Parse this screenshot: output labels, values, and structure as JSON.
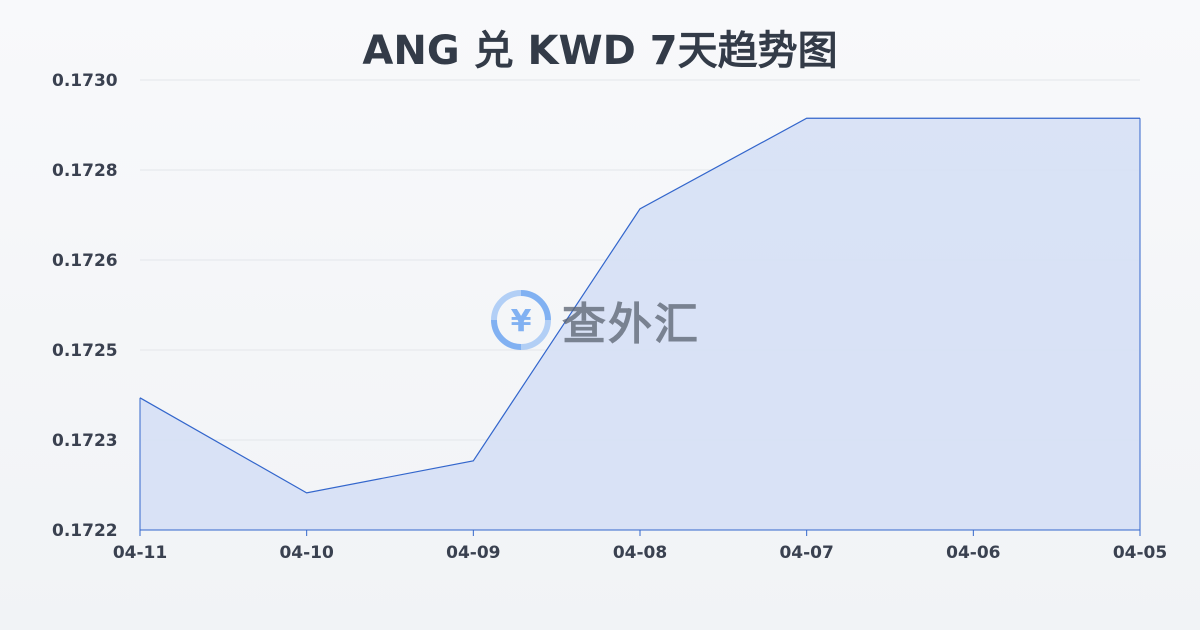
{
  "chart_data": {
    "type": "area",
    "title": "ANG 兑 KWD 7天趋势图",
    "xlabel": "",
    "ylabel": "",
    "categories": [
      "04-11",
      "04-10",
      "04-09",
      "04-08",
      "04-07",
      "04-06",
      "04-05"
    ],
    "y_ticks": [
      "0.1722",
      "0.1723",
      "0.1725",
      "0.1726",
      "0.1728",
      "0.1730"
    ],
    "ylim": [
      0.17216,
      0.17296
    ],
    "values": [
      0.172395,
      0.172226,
      0.172283,
      0.172731,
      0.172892,
      0.172892,
      0.172892
    ],
    "grid": true,
    "colors": {
      "line": "#3366cc",
      "fill": "#d6e0f5",
      "grid": "#e3e6ea"
    }
  },
  "watermark": {
    "text": "查外汇",
    "icon": "yen-exchange-icon",
    "color": "#5b9bf0"
  }
}
